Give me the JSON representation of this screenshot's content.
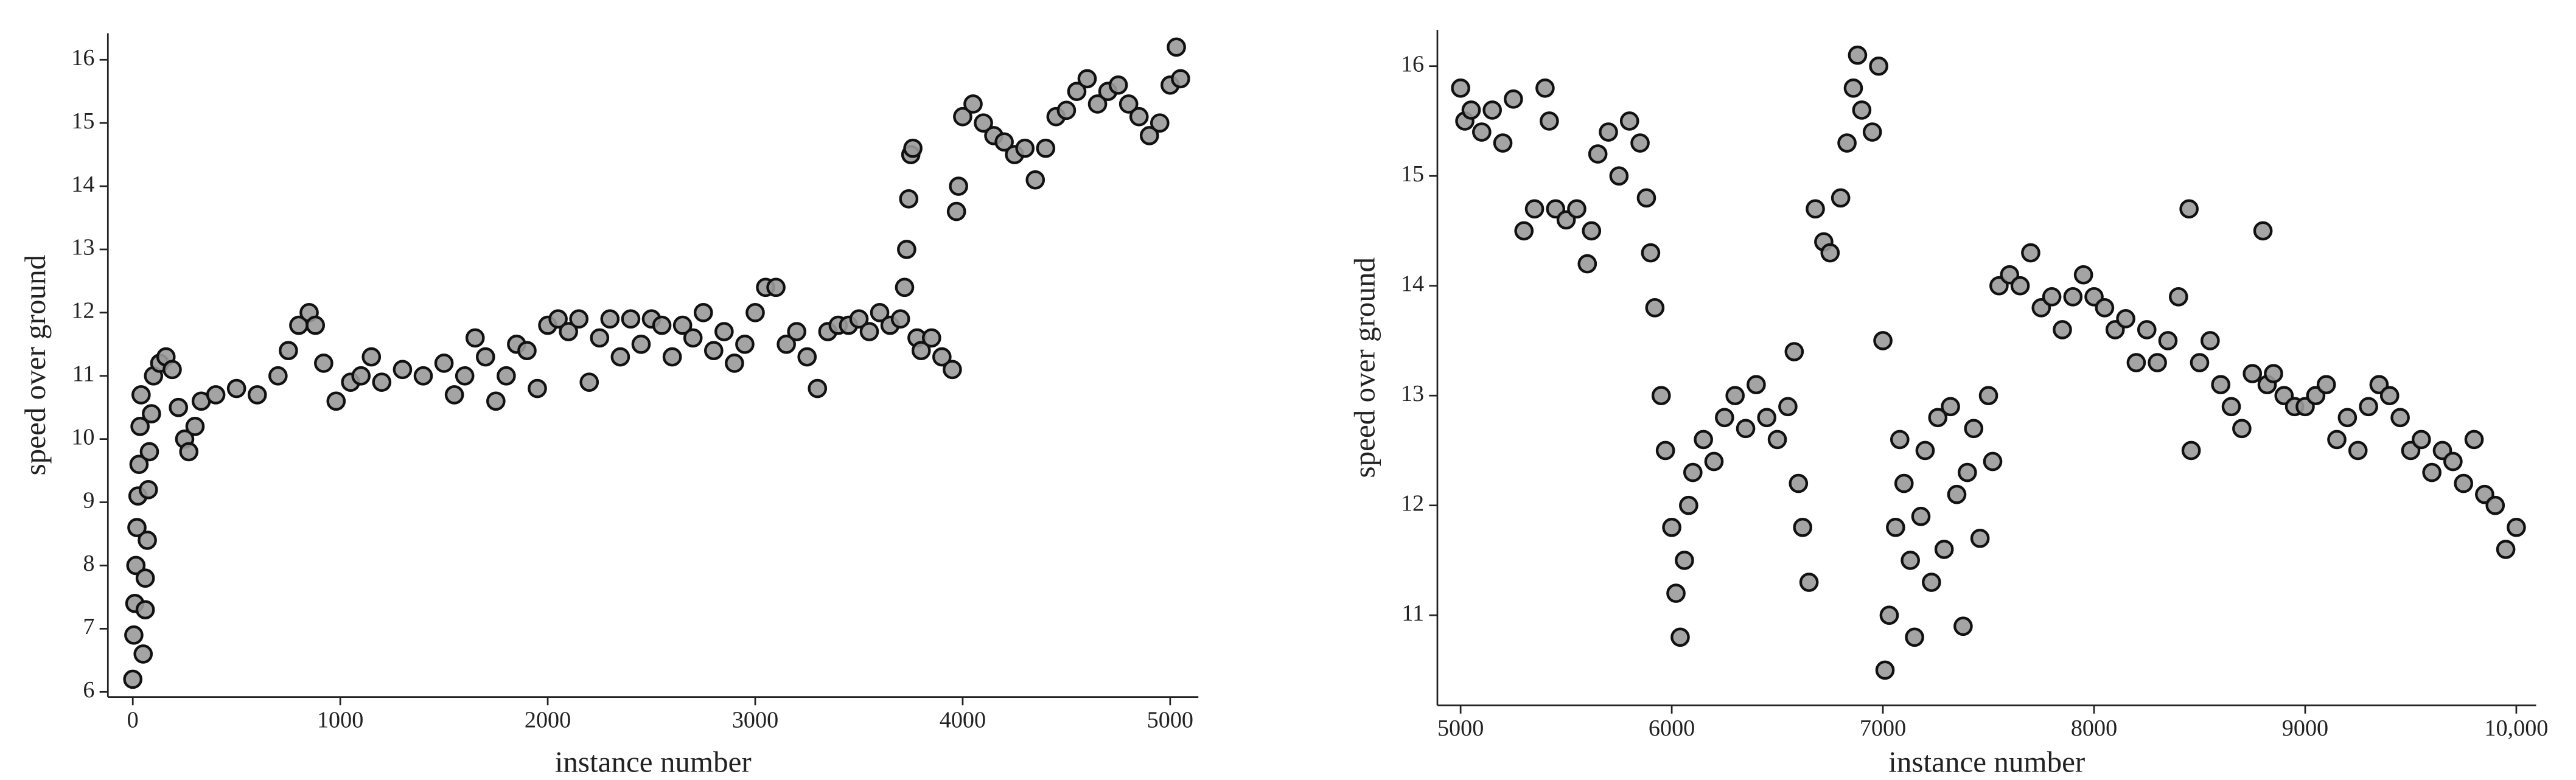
{
  "chart_data": [
    {
      "type": "scatter",
      "xlabel": "instance number",
      "ylabel": "speed over ground",
      "color": "#9a9a9a",
      "edgecolor": "#111111",
      "grid": false,
      "xlim": [
        -120,
        5136
      ],
      "ylim": [
        5.92,
        16.42
      ],
      "xticks": [
        0,
        1000,
        2000,
        3000,
        4000,
        5000
      ],
      "yticks": [
        6,
        7,
        8,
        9,
        10,
        11,
        12,
        13,
        14,
        15,
        16
      ],
      "x": [
        0,
        5,
        10,
        15,
        20,
        25,
        30,
        35,
        40,
        50,
        60,
        60,
        70,
        75,
        80,
        90,
        100,
        130,
        160,
        190,
        220,
        250,
        270,
        300,
        330,
        400,
        500,
        600,
        700,
        750,
        800,
        850,
        880,
        920,
        980,
        1050,
        1100,
        1150,
        1200,
        1300,
        1400,
        1500,
        1550,
        1600,
        1650,
        1700,
        1750,
        1800,
        1850,
        1900,
        1950,
        2000,
        2050,
        2100,
        2150,
        2200,
        2250,
        2300,
        2350,
        2400,
        2450,
        2500,
        2550,
        2600,
        2650,
        2700,
        2750,
        2800,
        2850,
        2900,
        2950,
        3000,
        3050,
        3100,
        3150,
        3200,
        3250,
        3300,
        3350,
        3400,
        3450,
        3500,
        3550,
        3600,
        3650,
        3700,
        3720,
        3730,
        3740,
        3750,
        3760,
        3780,
        3800,
        3850,
        3900,
        3950,
        3970,
        3980,
        4000,
        4050,
        4100,
        4150,
        4200,
        4250,
        4300,
        4350,
        4400,
        4450,
        4500,
        4550,
        4600,
        4650,
        4700,
        4750,
        4800,
        4850,
        4900,
        4950,
        5000,
        5030,
        5050
      ],
      "values": [
        6.2,
        6.9,
        7.4,
        8.0,
        8.6,
        9.1,
        9.6,
        10.2,
        10.7,
        6.6,
        7.3,
        7.8,
        8.4,
        9.2,
        9.8,
        10.4,
        11.0,
        11.2,
        11.3,
        11.1,
        10.5,
        10.0,
        9.8,
        10.2,
        10.6,
        10.7,
        10.8,
        10.7,
        11.0,
        11.4,
        11.8,
        12.0,
        11.8,
        11.2,
        10.6,
        10.9,
        11.0,
        11.3,
        10.9,
        11.1,
        11.0,
        11.2,
        10.7,
        11.0,
        11.6,
        11.3,
        10.6,
        11.0,
        11.5,
        11.4,
        10.8,
        11.8,
        11.9,
        11.7,
        11.9,
        10.9,
        11.6,
        11.9,
        11.3,
        11.9,
        11.5,
        11.9,
        11.8,
        11.3,
        11.8,
        11.6,
        12.0,
        11.4,
        11.7,
        11.2,
        11.5,
        12.0,
        12.4,
        12.4,
        11.5,
        11.7,
        11.3,
        10.8,
        11.7,
        11.8,
        11.8,
        11.9,
        11.7,
        12.0,
        11.8,
        11.9,
        12.4,
        13.0,
        13.8,
        14.5,
        14.6,
        11.6,
        11.4,
        11.6,
        11.3,
        11.1,
        13.6,
        14.0,
        15.1,
        15.3,
        15.0,
        14.8,
        14.7,
        14.5,
        14.6,
        14.1,
        14.6,
        15.1,
        15.2,
        15.5,
        15.7,
        15.3,
        15.5,
        15.6,
        15.3,
        15.1,
        14.8,
        15.0,
        15.6,
        16.2,
        15.7
      ]
    },
    {
      "type": "scatter",
      "xlabel": "instance number",
      "ylabel": "speed over ground",
      "color": "#9a9a9a",
      "edgecolor": "#111111",
      "grid": false,
      "xlim": [
        4890,
        10094
      ],
      "ylim": [
        10.18,
        16.33
      ],
      "xticks": [
        5000,
        6000,
        7000,
        8000,
        9000,
        {
          "value": 10000,
          "label": "10,000"
        }
      ],
      "yticks": [
        11,
        12,
        13,
        14,
        15,
        16
      ],
      "x": [
        5000,
        5020,
        5050,
        5100,
        5150,
        5200,
        5250,
        5300,
        5350,
        5400,
        5420,
        5450,
        5500,
        5550,
        5600,
        5620,
        5650,
        5700,
        5750,
        5800,
        5850,
        5880,
        5900,
        5920,
        5950,
        5970,
        6000,
        6020,
        6040,
        6060,
        6080,
        6100,
        6150,
        6200,
        6250,
        6300,
        6350,
        6400,
        6450,
        6500,
        6550,
        6580,
        6600,
        6620,
        6650,
        6680,
        6720,
        6750,
        6800,
        6830,
        6860,
        6880,
        6900,
        6950,
        6980,
        7000,
        7010,
        7030,
        7060,
        7080,
        7100,
        7130,
        7150,
        7180,
        7200,
        7230,
        7260,
        7290,
        7320,
        7350,
        7380,
        7400,
        7430,
        7460,
        7500,
        7520,
        7550,
        7600,
        7650,
        7700,
        7750,
        7800,
        7850,
        7900,
        7950,
        8000,
        8050,
        8100,
        8150,
        8200,
        8250,
        8300,
        8350,
        8400,
        8450,
        8460,
        8500,
        8550,
        8600,
        8650,
        8700,
        8750,
        8800,
        8820,
        8850,
        8900,
        8950,
        9000,
        9050,
        9100,
        9150,
        9200,
        9250,
        9300,
        9350,
        9400,
        9450,
        9500,
        9550,
        9600,
        9650,
        9700,
        9750,
        9800,
        9850,
        9900,
        9950,
        10000
      ],
      "values": [
        15.8,
        15.5,
        15.6,
        15.4,
        15.6,
        15.3,
        15.7,
        14.5,
        14.7,
        15.8,
        15.5,
        14.7,
        14.6,
        14.7,
        14.2,
        14.5,
        15.2,
        15.4,
        15.0,
        15.5,
        15.3,
        14.8,
        14.3,
        13.8,
        13.0,
        12.5,
        11.8,
        11.2,
        10.8,
        11.5,
        12.0,
        12.3,
        12.6,
        12.4,
        12.8,
        13.0,
        12.7,
        13.1,
        12.8,
        12.6,
        12.9,
        13.4,
        12.2,
        11.8,
        11.3,
        14.7,
        14.4,
        14.3,
        14.8,
        15.3,
        15.8,
        16.1,
        15.6,
        15.4,
        16.0,
        13.5,
        10.5,
        11.0,
        11.8,
        12.6,
        12.2,
        11.5,
        10.8,
        11.9,
        12.5,
        11.3,
        12.8,
        11.6,
        12.9,
        12.1,
        10.9,
        12.3,
        12.7,
        11.7,
        13.0,
        12.4,
        14.0,
        14.1,
        14.0,
        14.3,
        13.8,
        13.9,
        13.6,
        13.9,
        14.1,
        13.9,
        13.8,
        13.6,
        13.7,
        13.3,
        13.6,
        13.3,
        13.5,
        13.9,
        14.7,
        12.5,
        13.3,
        13.5,
        13.1,
        12.9,
        12.7,
        13.2,
        14.5,
        13.1,
        13.2,
        13.0,
        12.9,
        12.9,
        13.0,
        13.1,
        12.6,
        12.8,
        12.5,
        12.9,
        13.1,
        13.0,
        12.8,
        12.5,
        12.6,
        12.3,
        12.5,
        12.4,
        12.2,
        12.6,
        12.1,
        12.0,
        11.6,
        11.8
      ]
    }
  ]
}
